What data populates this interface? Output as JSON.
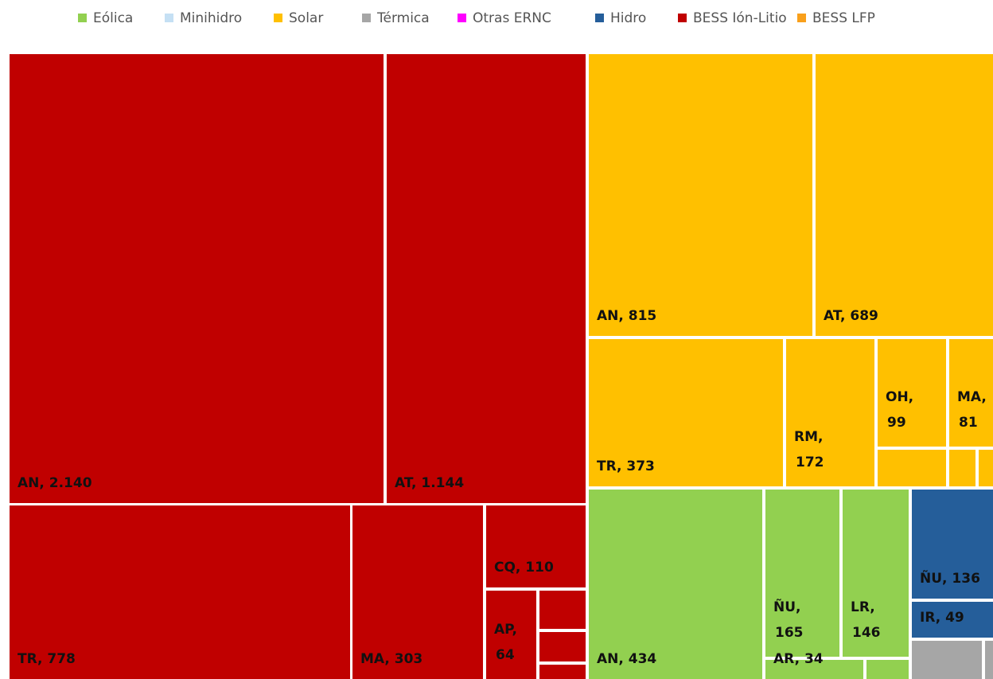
{
  "chart_data": {
    "type": "treemap",
    "series": [
      {
        "name": "Eólica",
        "color": "#92d050",
        "values": [
          434,
          165,
          146,
          34,
          10
        ],
        "value_labels": [
          "AN, 434",
          "ÑU, 165",
          "LR, 146",
          "AR, 34",
          null
        ]
      },
      {
        "name": "Minihidro",
        "color": "#c5e0f4",
        "values": [],
        "value_labels": []
      },
      {
        "name": "Solar",
        "color": "#ffc000",
        "values": [
          815,
          689,
          373,
          172,
          99,
          81,
          32,
          12,
          8
        ],
        "value_labels": [
          "AN, 815",
          "AT, 689",
          "TR, 373",
          "RM, 172",
          "OH, 99",
          "MA, 81",
          null,
          null,
          null
        ]
      },
      {
        "name": "Térmica",
        "color": "#a6a6a6",
        "values": [
          40,
          20
        ],
        "value_labels": [
          null,
          null
        ]
      },
      {
        "name": "Otras ERNC",
        "color": "#ff00ff",
        "values": [],
        "value_labels": []
      },
      {
        "name": "Hidro",
        "color": "#255e9a",
        "values": [
          136,
          49
        ],
        "value_labels": [
          "ÑU, 136",
          "IR, 49"
        ]
      },
      {
        "name": "BESS Ión-Litio",
        "color": "#c00000",
        "values": [
          2140,
          1144,
          778,
          303,
          110,
          64,
          23,
          18,
          15
        ],
        "value_labels": [
          "AN, 2.140",
          "AT, 1.144",
          "TR, 778",
          "MA, 303",
          "CQ, 110",
          "AP, 64",
          null,
          null,
          null
        ]
      },
      {
        "name": "BESS LFP",
        "color": "#f9a01b",
        "values": [],
        "value_labels": []
      }
    ]
  }
}
